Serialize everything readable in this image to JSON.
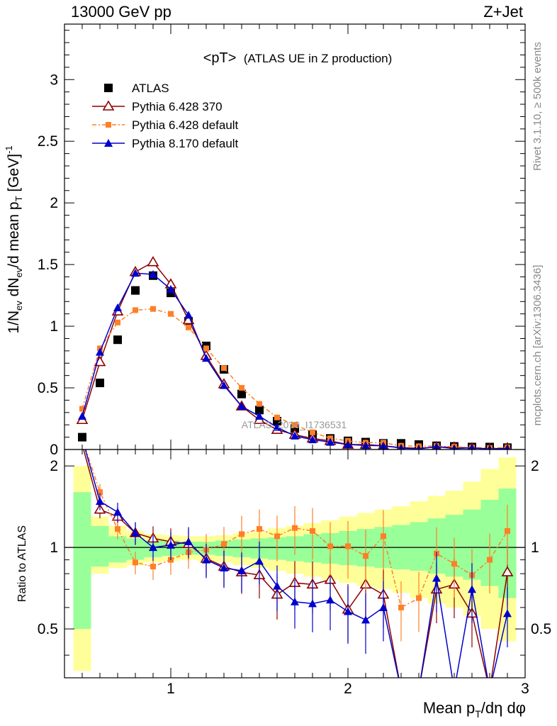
{
  "header": {
    "left": "13000 GeV pp",
    "right": "Z+Jet"
  },
  "side_text": {
    "rivet": "Rivet 3.1.10, ≥ 500k events",
    "mcplots": "mcplots.cern.ch [arXiv:1306.3436]"
  },
  "chart_data": {
    "type": "scatter",
    "title": "<pT> (ATLAS UE in Z production)",
    "title_main": "<pT>",
    "title_sub": "(ATLAS UE in Z production)",
    "watermark": "ATLAS_2019_I1736531",
    "xlabel": "Mean p_T/dη dφ",
    "ylabel": "1/N_ev dN_ev/d mean p_T [GeV]^-1",
    "ratio_ylabel": "Ratio to ATLAS",
    "xlim": [
      0.4,
      3.0
    ],
    "ylim": [
      0,
      3.45
    ],
    "ratio_ylim": [
      0.33,
      2.3
    ],
    "x_ticks": [
      "1",
      "2",
      "3"
    ],
    "y_ticks": [
      "0",
      "0.5",
      "1",
      "1.5",
      "2",
      "2.5",
      "3"
    ],
    "ratio_ticks": [
      "0.5",
      "1",
      "2"
    ],
    "legend_position": "top-left",
    "x": [
      0.5,
      0.6,
      0.7,
      0.8,
      0.9,
      1.0,
      1.1,
      1.2,
      1.3,
      1.4,
      1.5,
      1.6,
      1.7,
      1.8,
      1.9,
      2.0,
      2.1,
      2.2,
      2.3,
      2.4,
      2.5,
      2.6,
      2.7,
      2.8,
      2.9
    ],
    "series": [
      {
        "name": "ATLAS",
        "marker": "square",
        "color": "#000000",
        "values": [
          0.1,
          0.54,
          0.89,
          1.29,
          1.41,
          1.27,
          1.04,
          0.84,
          0.65,
          0.45,
          0.32,
          0.23,
          0.17,
          0.12,
          0.09,
          0.07,
          0.06,
          0.05,
          0.05,
          0.04,
          0.03,
          0.025,
          0.02,
          0.02,
          0.015
        ]
      },
      {
        "name": "Pythia 6.428 370",
        "marker": "open-triangle",
        "color": "#8b0000",
        "values": [
          0.24,
          0.71,
          1.12,
          1.44,
          1.52,
          1.34,
          1.05,
          0.76,
          0.53,
          0.35,
          0.24,
          0.16,
          0.12,
          0.09,
          0.07,
          0.04,
          0.04,
          0.03,
          0.015,
          0.01,
          0.02,
          0.018,
          0.012,
          0.005,
          0.012
        ]
      },
      {
        "name": "Pythia 6.428 default",
        "marker": "small-square",
        "color": "#ff7f27",
        "values": [
          0.33,
          0.82,
          1.03,
          1.13,
          1.14,
          1.1,
          0.99,
          0.82,
          0.66,
          0.5,
          0.37,
          0.26,
          0.2,
          0.14,
          0.09,
          0.07,
          0.055,
          0.055,
          0.03,
          0.026,
          0.028,
          0.022,
          0.016,
          0.012,
          0.017
        ]
      },
      {
        "name": "Pythia 8.170 default",
        "marker": "filled-triangle",
        "color": "#0000cc",
        "values": [
          0.27,
          0.79,
          1.15,
          1.43,
          1.42,
          1.3,
          1.09,
          0.74,
          0.52,
          0.35,
          0.27,
          0.18,
          0.11,
          0.08,
          0.06,
          0.04,
          0.033,
          0.03,
          0.012,
          0.005,
          0.023,
          0.008,
          0.014,
          0.004,
          0.009
        ]
      }
    ],
    "ratios": [
      {
        "name": "Pythia 6.428 370",
        "values": [
          2.4,
          1.38,
          1.3,
          1.13,
          1.08,
          1.05,
          1.03,
          0.91,
          0.85,
          0.81,
          0.79,
          0.67,
          0.74,
          0.73,
          0.76,
          0.59,
          0.73,
          0.67,
          0.1,
          0.1,
          0.7,
          0.73,
          0.57,
          0.1,
          0.81
        ]
      },
      {
        "name": "Pythia 6.428 default",
        "values": [
          2.9,
          1.6,
          1.17,
          0.88,
          0.85,
          0.9,
          0.96,
          0.98,
          1.03,
          1.12,
          1.17,
          1.1,
          1.18,
          1.15,
          1.01,
          1.01,
          0.93,
          1.1,
          0.6,
          0.65,
          0.95,
          0.87,
          0.79,
          0.9,
          1.15
        ]
      },
      {
        "name": "Pythia 8.170 default",
        "values": [
          2.7,
          1.48,
          1.35,
          1.13,
          1.0,
          1.02,
          1.05,
          0.9,
          0.84,
          0.82,
          0.89,
          0.72,
          0.63,
          0.62,
          0.64,
          0.58,
          0.54,
          0.6,
          0.1,
          0.1,
          0.77,
          0.1,
          0.7,
          0.1,
          0.57
        ]
      }
    ],
    "bands": {
      "inner": [
        [
          0.5,
          1.6
        ],
        [
          0.85,
          1.2
        ],
        [
          0.88,
          1.1
        ],
        [
          0.9,
          1.08
        ],
        [
          0.92,
          1.06
        ],
        [
          0.93,
          1.06
        ],
        [
          0.94,
          1.05
        ],
        [
          0.94,
          1.05
        ],
        [
          0.93,
          1.06
        ],
        [
          0.92,
          1.07
        ],
        [
          0.91,
          1.08
        ],
        [
          0.9,
          1.09
        ],
        [
          0.89,
          1.1
        ],
        [
          0.88,
          1.12
        ],
        [
          0.87,
          1.13
        ],
        [
          0.86,
          1.15
        ],
        [
          0.85,
          1.17
        ],
        [
          0.84,
          1.19
        ],
        [
          0.83,
          1.21
        ],
        [
          0.82,
          1.24
        ],
        [
          0.8,
          1.28
        ],
        [
          0.78,
          1.32
        ],
        [
          0.76,
          1.38
        ],
        [
          0.72,
          1.5
        ],
        [
          0.65,
          1.65
        ]
      ],
      "outer": [
        [
          0.35,
          2.0
        ],
        [
          0.8,
          1.3
        ],
        [
          0.84,
          1.2
        ],
        [
          0.86,
          1.15
        ],
        [
          0.88,
          1.12
        ],
        [
          0.89,
          1.11
        ],
        [
          0.9,
          1.1
        ],
        [
          0.89,
          1.1
        ],
        [
          0.88,
          1.11
        ],
        [
          0.86,
          1.13
        ],
        [
          0.84,
          1.15
        ],
        [
          0.82,
          1.18
        ],
        [
          0.8,
          1.2
        ],
        [
          0.78,
          1.23
        ],
        [
          0.76,
          1.26
        ],
        [
          0.74,
          1.3
        ],
        [
          0.72,
          1.34
        ],
        [
          0.7,
          1.38
        ],
        [
          0.68,
          1.42
        ],
        [
          0.65,
          1.48
        ],
        [
          0.62,
          1.55
        ],
        [
          0.6,
          1.62
        ],
        [
          0.56,
          1.75
        ],
        [
          0.5,
          1.95
        ],
        [
          0.45,
          2.15
        ]
      ]
    },
    "colors": {
      "band_inner": "#99ff99",
      "band_outer": "#ffff99"
    }
  }
}
